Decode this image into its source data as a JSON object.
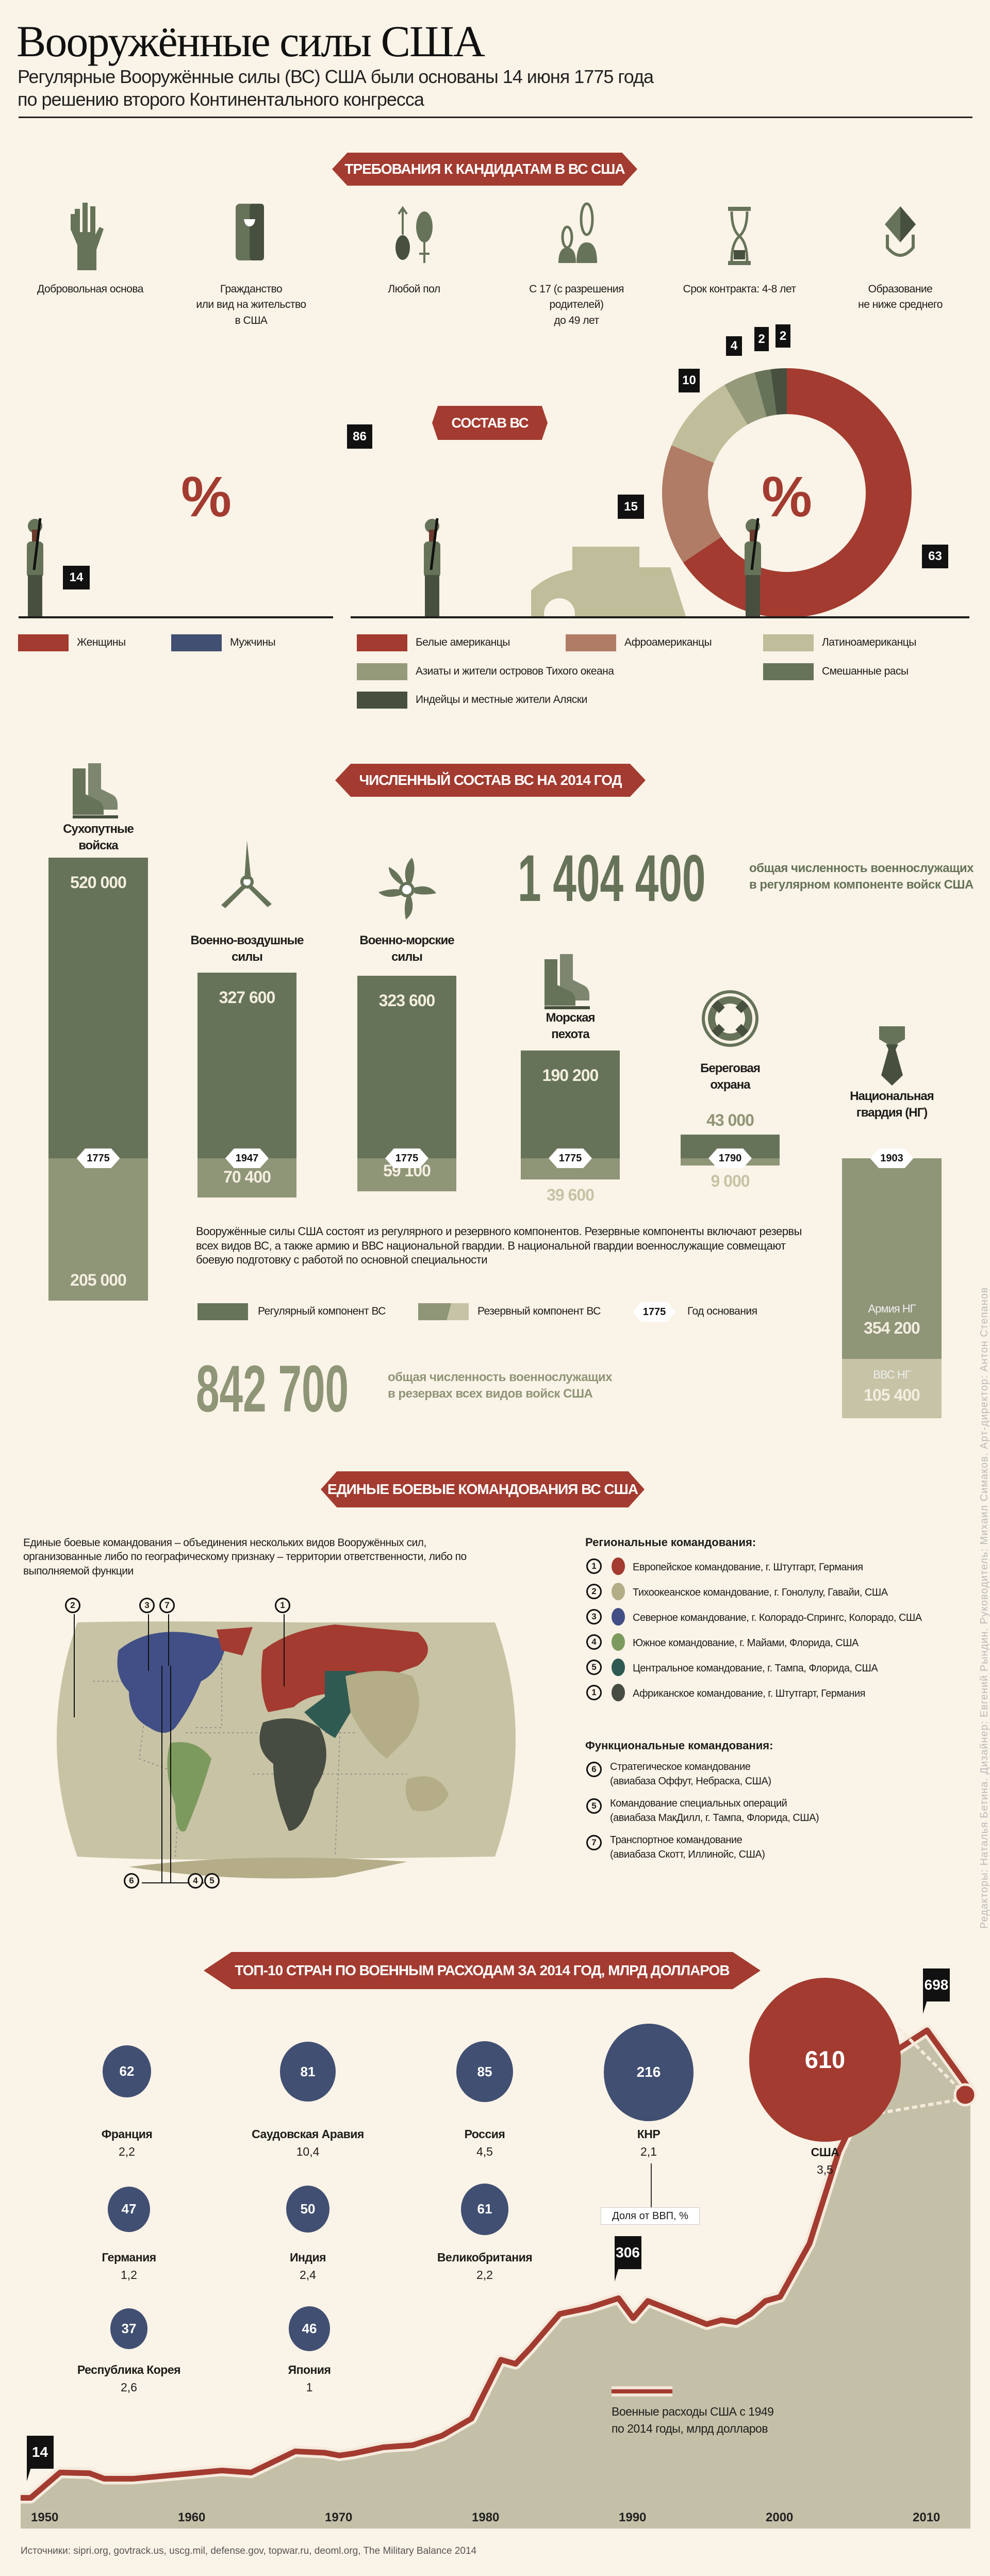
{
  "header": {
    "title": "Вооружённые силы США",
    "subtitle_line1": "Регулярные Вооружённые силы (ВС) США были основаны 14 июня 1775 года",
    "subtitle_line2": "по решению второго Континентального конгресса"
  },
  "requirements": {
    "banner": "ТРЕБОВАНИЯ К КАНДИДАТАМ В ВС США",
    "items": [
      {
        "icon": "raised-hand-icon",
        "label": "Добровольная основа"
      },
      {
        "icon": "passport-icon",
        "label": "Гражданство\nили вид на жительство\nв США"
      },
      {
        "icon": "gender-symbols-icon",
        "label": "Любой пол"
      },
      {
        "icon": "people-age-icon",
        "label": "С 17 (с разрешения\nродителей)\nдо 49 лет"
      },
      {
        "icon": "hourglass-icon",
        "label": "Срок контракта: 4-8 лет"
      },
      {
        "icon": "graduation-cap-icon",
        "label": "Образование\nне ниже среднего"
      }
    ]
  },
  "composition": {
    "banner": "СОСТАВ ВС",
    "center_symbol": "%"
  },
  "strength": {
    "banner": "ЧИСЛЕННЫЙ СОСТАВ ВС НА 2014 ГОД",
    "regular_total": "1 404 400",
    "regular_total_caption": "общая численность военнослужащих\nв регулярном компоненте войск США",
    "reserve_total": "842 700",
    "reserve_total_caption": "общая численность военнослужащих\nв резервах всех видов войск США",
    "note": "Вооружённые силы США состоят из регулярного и резервного компонентов. Резервные компоненты включают резервы всех видов ВС, а также армию и ВВС национальной гвардии. В национальной гвардии военнослужащие совмещают боевую подготовку с работой по основной специальности",
    "legend": {
      "regular": "Регулярный компонент ВС",
      "reserve": "Резервный компонент ВС",
      "year_sample": "1775",
      "year": "Год основания"
    }
  },
  "commands": {
    "banner": "ЕДИНЫЕ БОЕВЫЕ КОМАНДОВАНИЯ ВС США",
    "intro": "Единые боевые командования – объединения нескольких видов Вооружённых сил, организованные либо по географическому признаку – территории ответственности, либо по выполняемой функции",
    "regional_title": "Региональные командования:",
    "regional": [
      {
        "num": "1",
        "color": "#a33b30",
        "label": "Европейское командование, г. Штутгарт, Германия"
      },
      {
        "num": "2",
        "color": "#b4ad88",
        "label": "Тихоокеанское командование, г. Гонолулу, Гавайи, США"
      },
      {
        "num": "3",
        "color": "#414f86",
        "label": "Северное командование, г. Колорадо-Спрингс, Колорадо, США"
      },
      {
        "num": "4",
        "color": "#7d9a5e",
        "label": "Южное командование, г. Майами, Флорида, США"
      },
      {
        "num": "5",
        "color": "#2e5a52",
        "label": "Центральное командование,  г. Тампа, Флорида, США"
      },
      {
        "num": "1",
        "color": "#474c42",
        "label": "Африканское командование, г. Штутгарт, Германия"
      }
    ],
    "functional_title": "Функциональные командования:",
    "functional": [
      {
        "num": "6",
        "label": "Стратегическое командование\n(авиабаза Оффут, Небраска, США)"
      },
      {
        "num": "5",
        "label": "Командование специальных операций\n(авиабаза МакДилл, г. Тампа, Флорида, США)"
      },
      {
        "num": "7",
        "label": "Транспортное командование\n(авиабаза Скотт, Иллинойс, США)"
      }
    ],
    "map_callouts_top": [
      "2",
      "3",
      "7",
      "1"
    ],
    "map_callouts_bottom": [
      "6",
      "4",
      "5"
    ]
  },
  "spending": {
    "banner": "ТОП-10 СТРАН ПО ВОЕННЫМ РАСХОДАМ ЗА 2014 ГОД, МЛРД ДОЛЛАРОВ",
    "gdp_note": "Доля от ВВП, %",
    "line_legend": "Военные расходы США с 1949\nпо 2014 годы, млрд долларов"
  },
  "chart_data": [
    {
      "type": "pie",
      "segments": [
        {
          "label": "Женщины",
          "value": 14,
          "color": "#a33b30"
        },
        {
          "label": "Мужчины",
          "value": 86,
          "color": "#414f72"
        }
      ]
    },
    {
      "type": "pie",
      "segments": [
        {
          "label": "Белые американцы",
          "value": 63,
          "color": "#a33b30"
        },
        {
          "label": "Афроамериканцы",
          "value": 15,
          "color": "#b07c66"
        },
        {
          "label": "Латиноамериканцы",
          "value": 10,
          "color": "#c0bd9a"
        },
        {
          "label": "Азиаты и жители островов Тихого океана",
          "value": 4,
          "color": "#949a7a"
        },
        {
          "label": "Смешанные расы",
          "value": 2,
          "color": "#667359"
        },
        {
          "label": "Индейцы и местные жители Аляски",
          "value": 2,
          "color": "#47503f"
        }
      ]
    },
    {
      "type": "bar",
      "stacked": true,
      "bars": [
        {
          "name": "Сухопутные\nвойска",
          "icon": "boots-icon",
          "regular": "520 000",
          "reserve": "205 000",
          "founded": "1775"
        },
        {
          "name": "Военно-воздушные\nсилы",
          "icon": "propeller-icon",
          "regular": "327 600",
          "reserve": "70 400",
          "founded": "1947"
        },
        {
          "name": "Военно-морские\nсилы",
          "icon": "ship-screw-icon",
          "regular": "323 600",
          "reserve": "59 100",
          "founded": "1775"
        },
        {
          "name": "Морская\nпехота",
          "icon": "boots-icon",
          "regular": "190 200",
          "reserve": "39 600",
          "founded": "1775"
        },
        {
          "name": "Береговая\nохрана",
          "icon": "lifebuoy-icon",
          "regular": "43 000",
          "reserve": "9 000",
          "founded": "1790"
        },
        {
          "name": "Национальная\nгвардия (НГ)",
          "icon": "tie-icon",
          "founded": "1903",
          "army_label": "Армия НГ",
          "army": "354 200",
          "air_label": "ВВС НГ",
          "air": "105 400"
        }
      ]
    },
    {
      "type": "bubble",
      "countries": [
        {
          "name": "Франция",
          "value": 62,
          "gdp": "2,2"
        },
        {
          "name": "Саудовская Аравия",
          "value": 81,
          "gdp": "10,4"
        },
        {
          "name": "Россия",
          "value": 85,
          "gdp": "4,5"
        },
        {
          "name": "КНР",
          "value": 216,
          "gdp": "2,1"
        },
        {
          "name": "США",
          "value": 610,
          "gdp": "3,5"
        },
        {
          "name": "Германия",
          "value": 47,
          "gdp": "1,2"
        },
        {
          "name": "Индия",
          "value": 50,
          "gdp": "2,4"
        },
        {
          "name": "Великобритания",
          "value": 61,
          "gdp": "2,2"
        },
        {
          "name": "Республика Корея",
          "value": 37,
          "gdp": "2,6"
        },
        {
          "name": "Япония",
          "value": 46,
          "gdp": "1"
        }
      ],
      "colors": {
        "usa": "#a33b30",
        "other": "#414f72"
      }
    },
    {
      "type": "area",
      "xticks": [
        "1950",
        "1960",
        "1970",
        "1980",
        "1990",
        "2000",
        "2010"
      ],
      "annotations": [
        {
          "x": 1949,
          "label": "14"
        },
        {
          "x": 1989,
          "label": "306"
        },
        {
          "x": 2010,
          "label": "698"
        }
      ],
      "points": [
        [
          1949,
          14
        ],
        [
          1951,
          51
        ],
        [
          1953,
          50
        ],
        [
          1954,
          42
        ],
        [
          1956,
          42
        ],
        [
          1959,
          48
        ],
        [
          1962,
          54
        ],
        [
          1964,
          51
        ],
        [
          1967,
          82
        ],
        [
          1969,
          80
        ],
        [
          1970,
          76
        ],
        [
          1971,
          79
        ],
        [
          1973,
          88
        ],
        [
          1975,
          91
        ],
        [
          1977,
          105
        ],
        [
          1979,
          130
        ],
        [
          1981,
          216
        ],
        [
          1982,
          210
        ],
        [
          1983,
          233
        ],
        [
          1985,
          283
        ],
        [
          1987,
          292
        ],
        [
          1989,
          306
        ],
        [
          1990,
          277
        ],
        [
          1991,
          302
        ],
        [
          1995,
          268
        ],
        [
          1996,
          274
        ],
        [
          1997,
          271
        ],
        [
          1998,
          283
        ],
        [
          1999,
          302
        ],
        [
          2000,
          308
        ],
        [
          2002,
          386
        ],
        [
          2004,
          521
        ],
        [
          2007,
          656
        ],
        [
          2010,
          698
        ],
        [
          2013,
          610
        ]
      ]
    }
  ],
  "sources": "Источники: sipri.org, govtrack.us, uscg.mil, defense.gov, topwar.ru, deoml.org, The Military Balance 2014",
  "credits": "Редакторы: Наталья Бетина. Дизайнер: Евгений Рындин. Руководитель: Михаил Симаков. Арт-директор: Антон Степанов"
}
